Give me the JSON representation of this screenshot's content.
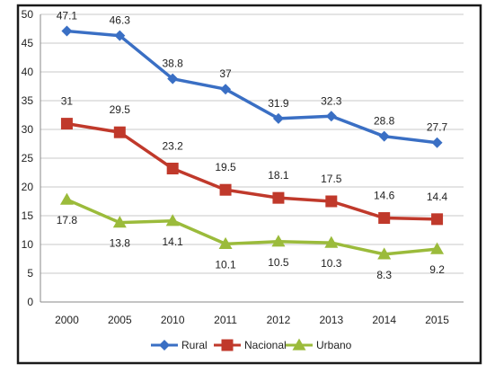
{
  "chart_data": {
    "type": "line",
    "categories": [
      "2000",
      "2005",
      "2010",
      "2011",
      "2012",
      "2013",
      "2014",
      "2015"
    ],
    "series": [
      {
        "name": "Rural",
        "color": "#3a6fc4",
        "marker": "diamond",
        "values": [
          47.1,
          46.3,
          38.8,
          37,
          31.9,
          32.3,
          28.8,
          27.7
        ]
      },
      {
        "name": "Nacional",
        "color": "#c0392b",
        "marker": "square",
        "values": [
          31,
          29.5,
          23.2,
          19.5,
          18.1,
          17.5,
          14.6,
          14.4
        ]
      },
      {
        "name": "Urbano",
        "color": "#9bbb3b",
        "marker": "triangle",
        "values": [
          17.8,
          13.8,
          14.1,
          10.1,
          10.5,
          10.3,
          8.3,
          9.2
        ]
      }
    ],
    "ylim": [
      0,
      50
    ],
    "yticks": [
      0,
      5,
      10,
      15,
      20,
      25,
      30,
      35,
      40,
      45,
      50
    ],
    "grid": true,
    "legend_position": "bottom",
    "title": "",
    "xlabel": "",
    "ylabel": ""
  }
}
